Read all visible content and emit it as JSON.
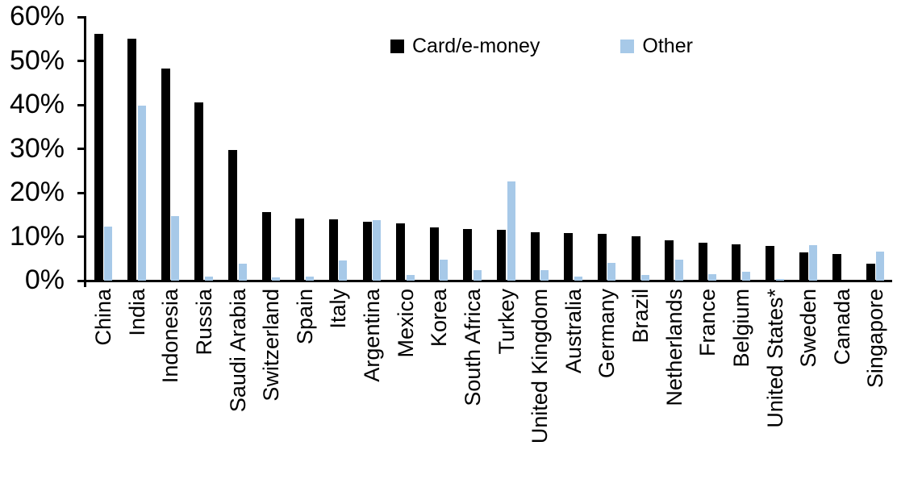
{
  "chart_data": {
    "type": "bar",
    "title": "",
    "xlabel": "",
    "ylabel": "",
    "ylim": [
      0,
      60
    ],
    "ytick_values": [
      0,
      10,
      20,
      30,
      40,
      50,
      60
    ],
    "ytick_labels": [
      "0%",
      "10%",
      "20%",
      "30%",
      "40%",
      "50%",
      "60%"
    ],
    "grid": false,
    "legend_position": "top-center",
    "categories": [
      "China",
      "India",
      "Indonesia",
      "Russia",
      "Saudi Arabia",
      "Switzerland",
      "Spain",
      "Italy",
      "Argentina",
      "Mexico",
      "Korea",
      "South Africa",
      "Turkey",
      "United Kingdom",
      "Australia",
      "Germany",
      "Brazil",
      "Netherlands",
      "France",
      "Belgium",
      "United States*",
      "Sweden",
      "Canada",
      "Singapore"
    ],
    "series": [
      {
        "name": "Card/e-money",
        "color": "#000000",
        "values": [
          56.2,
          55.0,
          48.3,
          40.5,
          29.8,
          15.6,
          14.2,
          14.0,
          13.4,
          13.0,
          12.2,
          11.7,
          11.6,
          11.0,
          10.8,
          10.6,
          10.0,
          9.2,
          8.7,
          8.2,
          7.9,
          6.5,
          6.0,
          3.8
        ]
      },
      {
        "name": "Other",
        "color": "#A7C9E8",
        "values": [
          12.3,
          39.8,
          14.6,
          1.0,
          3.9,
          0.8,
          1.0,
          4.6,
          13.8,
          1.3,
          4.7,
          2.3,
          22.5,
          2.3,
          1.0,
          4.0,
          1.2,
          4.8,
          1.5,
          2.0,
          0.3,
          8.0,
          0,
          6.6
        ]
      }
    ]
  }
}
